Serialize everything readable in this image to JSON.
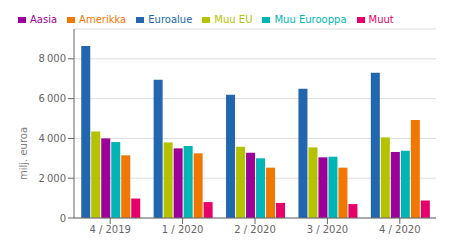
{
  "chart_data": {
    "type": "bar",
    "categories": [
      "4 / 2019",
      "1 / 2020",
      "2 / 2020",
      "3 / 2020",
      "4 / 2020"
    ],
    "series": [
      {
        "name": "Euroalue",
        "color": "#2167b0",
        "values": [
          8650,
          6950,
          6200,
          6500,
          7300
        ]
      },
      {
        "name": "Muu EU",
        "color": "#b5c200",
        "values": [
          4350,
          3800,
          3580,
          3550,
          4050
        ]
      },
      {
        "name": "Aasia",
        "color": "#9b0098",
        "values": [
          4000,
          3500,
          3280,
          3050,
          3320
        ]
      },
      {
        "name": "Muu Eurooppa",
        "color": "#00b5b5",
        "values": [
          3820,
          3620,
          3000,
          3080,
          3380
        ]
      },
      {
        "name": "Amerikka",
        "color": "#f07800",
        "values": [
          3150,
          3250,
          2530,
          2530,
          4920
        ]
      },
      {
        "name": "Muut",
        "color": "#e8006a",
        "values": [
          980,
          800,
          760,
          700,
          880
        ]
      }
    ],
    "ylabel": "milj. euroa",
    "ylim": [
      0,
      9500
    ],
    "yticks": [
      0,
      {
        "value": 2000,
        "label": "2 000"
      },
      {
        "value": 4000,
        "label": "4 000"
      },
      {
        "value": 6000,
        "label": "6 000"
      },
      {
        "value": 8000,
        "label": "8 000"
      }
    ],
    "grid": true,
    "legend": "top"
  }
}
